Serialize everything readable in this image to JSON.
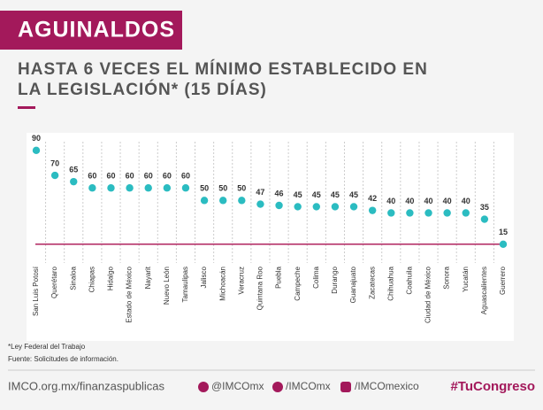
{
  "header": {
    "title": "AGUINALDOS",
    "subtitle_lines": [
      "HASTA 6 VECES EL MÍNIMO ESTABLECIDO EN",
      "LA LEGISLACIÓN* (15 DÍAS)"
    ]
  },
  "chart_data": {
    "type": "dot",
    "categories": [
      "San Luis Potosí",
      "Querétaro",
      "Sinaloa",
      "Chiapas",
      "Hidalgo",
      "Estado de México",
      "Nayarit",
      "Nuevo León",
      "Tamaulipas",
      "Jalisco",
      "Michoacán",
      "Veracruz",
      "Quintana Roo",
      "Puebla",
      "Campeche",
      "Colima",
      "Durango",
      "Guanajuato",
      "Zacatecas",
      "Chihuahua",
      "Coahuila",
      "Ciudad de México",
      "Sonora",
      "Yucatán",
      "Aguascalientes",
      "Guerrero"
    ],
    "values": [
      90,
      70,
      65,
      60,
      60,
      60,
      60,
      60,
      60,
      50,
      50,
      50,
      47,
      46,
      45,
      45,
      45,
      45,
      42,
      40,
      40,
      40,
      40,
      40,
      35,
      15
    ],
    "color": "#2bbcc1",
    "reference_line": 15,
    "reference_color": "#b0245f",
    "ylim": [
      0,
      100
    ]
  },
  "notes": [
    "*Ley Federal del Trabajo",
    "Fuente: Solicitudes de información."
  ],
  "footer": {
    "site": "IMCO.org.mx/finanzaspublicas",
    "twitter": "@IMCOmx",
    "facebook": "/IMCOmx",
    "instagram": "/IMCOmexico",
    "hashtag": "#TuCongreso"
  }
}
